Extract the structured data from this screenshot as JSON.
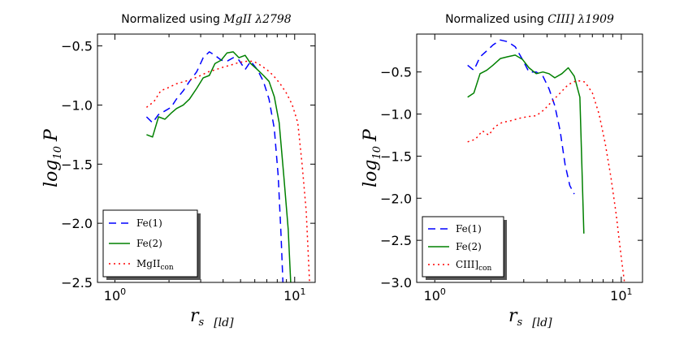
{
  "chart_data": [
    {
      "type": "line",
      "title_prefix": "Normalized using ",
      "title_line": "MgII λ2798",
      "xlabel_var": "r",
      "xlabel_sub": "s",
      "xlabel_unit": "[ld]",
      "ylabel_var": "log",
      "ylabel_sub": "10",
      "ylabel_tail": "P",
      "xscale": "log",
      "xlim": [
        0.8,
        13.0
      ],
      "ylim": [
        -2.5,
        -0.4
      ],
      "yticks": [
        -0.5,
        -1.0,
        -1.5,
        -2.0,
        -2.5
      ],
      "ytick_labels": [
        "−0.5",
        "−1.0",
        "−1.5",
        "−2.0",
        "−2.5"
      ],
      "xticks": [
        1,
        10
      ],
      "xtick_base": "10",
      "xtick_exps": [
        "0",
        "1"
      ],
      "legend_position": "lower-left",
      "series": [
        {
          "name": "Fe(1)",
          "label_main": "Fe(1)",
          "label_sub": "",
          "color": "#0000ff",
          "dash": "dashed",
          "x": [
            1.5,
            1.62,
            1.75,
            1.9,
            2.05,
            2.2,
            2.4,
            2.6,
            2.85,
            3.1,
            3.35,
            3.6,
            3.9,
            4.2,
            4.55,
            4.9,
            5.3,
            5.7,
            6.2,
            6.7,
            7.2,
            7.7,
            8.1,
            8.4,
            8.6
          ],
          "y": [
            -1.1,
            -1.15,
            -1.08,
            -1.05,
            -1.02,
            -0.95,
            -0.88,
            -0.8,
            -0.72,
            -0.6,
            -0.55,
            -0.58,
            -0.62,
            -0.63,
            -0.6,
            -0.62,
            -0.7,
            -0.63,
            -0.7,
            -0.8,
            -0.95,
            -1.2,
            -1.6,
            -2.1,
            -2.5
          ]
        },
        {
          "name": "Fe(2)",
          "label_main": "Fe(2)",
          "label_sub": "",
          "color": "#008000",
          "dash": "solid",
          "x": [
            1.5,
            1.62,
            1.75,
            1.9,
            2.05,
            2.2,
            2.4,
            2.6,
            2.85,
            3.1,
            3.35,
            3.6,
            3.9,
            4.2,
            4.55,
            4.9,
            5.3,
            5.7,
            6.2,
            6.7,
            7.2,
            7.7,
            8.2,
            8.7,
            9.2,
            9.5
          ],
          "y": [
            -1.25,
            -1.27,
            -1.1,
            -1.12,
            -1.07,
            -1.03,
            -1.0,
            -0.95,
            -0.86,
            -0.77,
            -0.75,
            -0.65,
            -0.62,
            -0.56,
            -0.55,
            -0.6,
            -0.58,
            -0.65,
            -0.7,
            -0.75,
            -0.8,
            -0.93,
            -1.15,
            -1.6,
            -2.05,
            -2.5
          ]
        },
        {
          "name": "MgII_con",
          "label_main": "MgII",
          "label_sub": "con",
          "color": "#ff0000",
          "dash": "dotted",
          "x": [
            1.5,
            1.65,
            1.8,
            2.0,
            2.2,
            2.45,
            2.7,
            3.0,
            3.3,
            3.65,
            4.0,
            4.45,
            4.9,
            5.4,
            5.9,
            6.4,
            7.0,
            7.6,
            8.3,
            9.0,
            9.7,
            10.4,
            11.0,
            11.6,
            12.1
          ],
          "y": [
            -1.02,
            -0.97,
            -0.88,
            -0.85,
            -0.82,
            -0.8,
            -0.78,
            -0.75,
            -0.72,
            -0.7,
            -0.68,
            -0.66,
            -0.64,
            -0.63,
            -0.63,
            -0.66,
            -0.7,
            -0.75,
            -0.82,
            -0.9,
            -1.0,
            -1.15,
            -1.5,
            -1.9,
            -2.5
          ]
        }
      ]
    },
    {
      "type": "line",
      "title_prefix": "Normalized using ",
      "title_line": "CIII] λ1909",
      "xlabel_var": "r",
      "xlabel_sub": "s",
      "xlabel_unit": "[ld]",
      "ylabel_var": "log",
      "ylabel_sub": "10",
      "ylabel_tail": "P",
      "xscale": "log",
      "xlim": [
        0.8,
        13.0
      ],
      "ylim": [
        -3.0,
        -0.05
      ],
      "yticks": [
        -0.5,
        -1.0,
        -1.5,
        -2.0,
        -2.5,
        -3.0
      ],
      "ytick_labels": [
        "−0.5",
        "−1.0",
        "−1.5",
        "−2.0",
        "−2.5",
        "−3.0"
      ],
      "xticks": [
        1,
        10
      ],
      "xtick_base": "10",
      "xtick_exps": [
        "0",
        "1"
      ],
      "legend_position": "lower-left",
      "series": [
        {
          "name": "Fe(1)",
          "label_main": "Fe(1)",
          "label_sub": "",
          "color": "#0000ff",
          "dash": "dashed",
          "x": [
            1.5,
            1.62,
            1.75,
            1.9,
            2.05,
            2.25,
            2.45,
            2.7,
            2.95,
            3.2,
            3.5,
            3.8,
            4.1,
            4.4,
            4.7,
            5.0,
            5.3,
            5.6
          ],
          "y": [
            -0.42,
            -0.48,
            -0.32,
            -0.25,
            -0.18,
            -0.12,
            -0.14,
            -0.2,
            -0.35,
            -0.5,
            -0.5,
            -0.55,
            -0.7,
            -0.9,
            -1.2,
            -1.6,
            -1.85,
            -1.95
          ]
        },
        {
          "name": "Fe(2)",
          "label_main": "Fe(2)",
          "label_sub": "",
          "color": "#008000",
          "dash": "solid",
          "x": [
            1.5,
            1.62,
            1.75,
            1.9,
            2.05,
            2.25,
            2.45,
            2.7,
            2.95,
            3.2,
            3.5,
            3.8,
            4.1,
            4.4,
            4.8,
            5.2,
            5.6,
            6.0,
            6.3
          ],
          "y": [
            -0.8,
            -0.75,
            -0.52,
            -0.48,
            -0.42,
            -0.34,
            -0.32,
            -0.3,
            -0.35,
            -0.45,
            -0.52,
            -0.5,
            -0.52,
            -0.57,
            -0.52,
            -0.45,
            -0.55,
            -0.8,
            -2.42
          ]
        },
        {
          "name": "CIII]_con",
          "label_main": "CIII]",
          "label_sub": "con",
          "color": "#ff0000",
          "dash": "dotted",
          "x": [
            1.5,
            1.65,
            1.8,
            1.95,
            2.1,
            2.3,
            2.55,
            2.85,
            3.15,
            3.5,
            3.85,
            4.25,
            4.7,
            5.2,
            5.8,
            6.4,
            7.0,
            7.6,
            8.2,
            8.8,
            9.4,
            10.0,
            10.4
          ],
          "y": [
            -1.33,
            -1.3,
            -1.2,
            -1.25,
            -1.15,
            -1.1,
            -1.08,
            -1.05,
            -1.03,
            -1.02,
            -0.95,
            -0.85,
            -0.75,
            -0.65,
            -0.6,
            -0.62,
            -0.75,
            -1.0,
            -1.35,
            -1.75,
            -2.2,
            -2.7,
            -3.0
          ]
        }
      ]
    }
  ]
}
